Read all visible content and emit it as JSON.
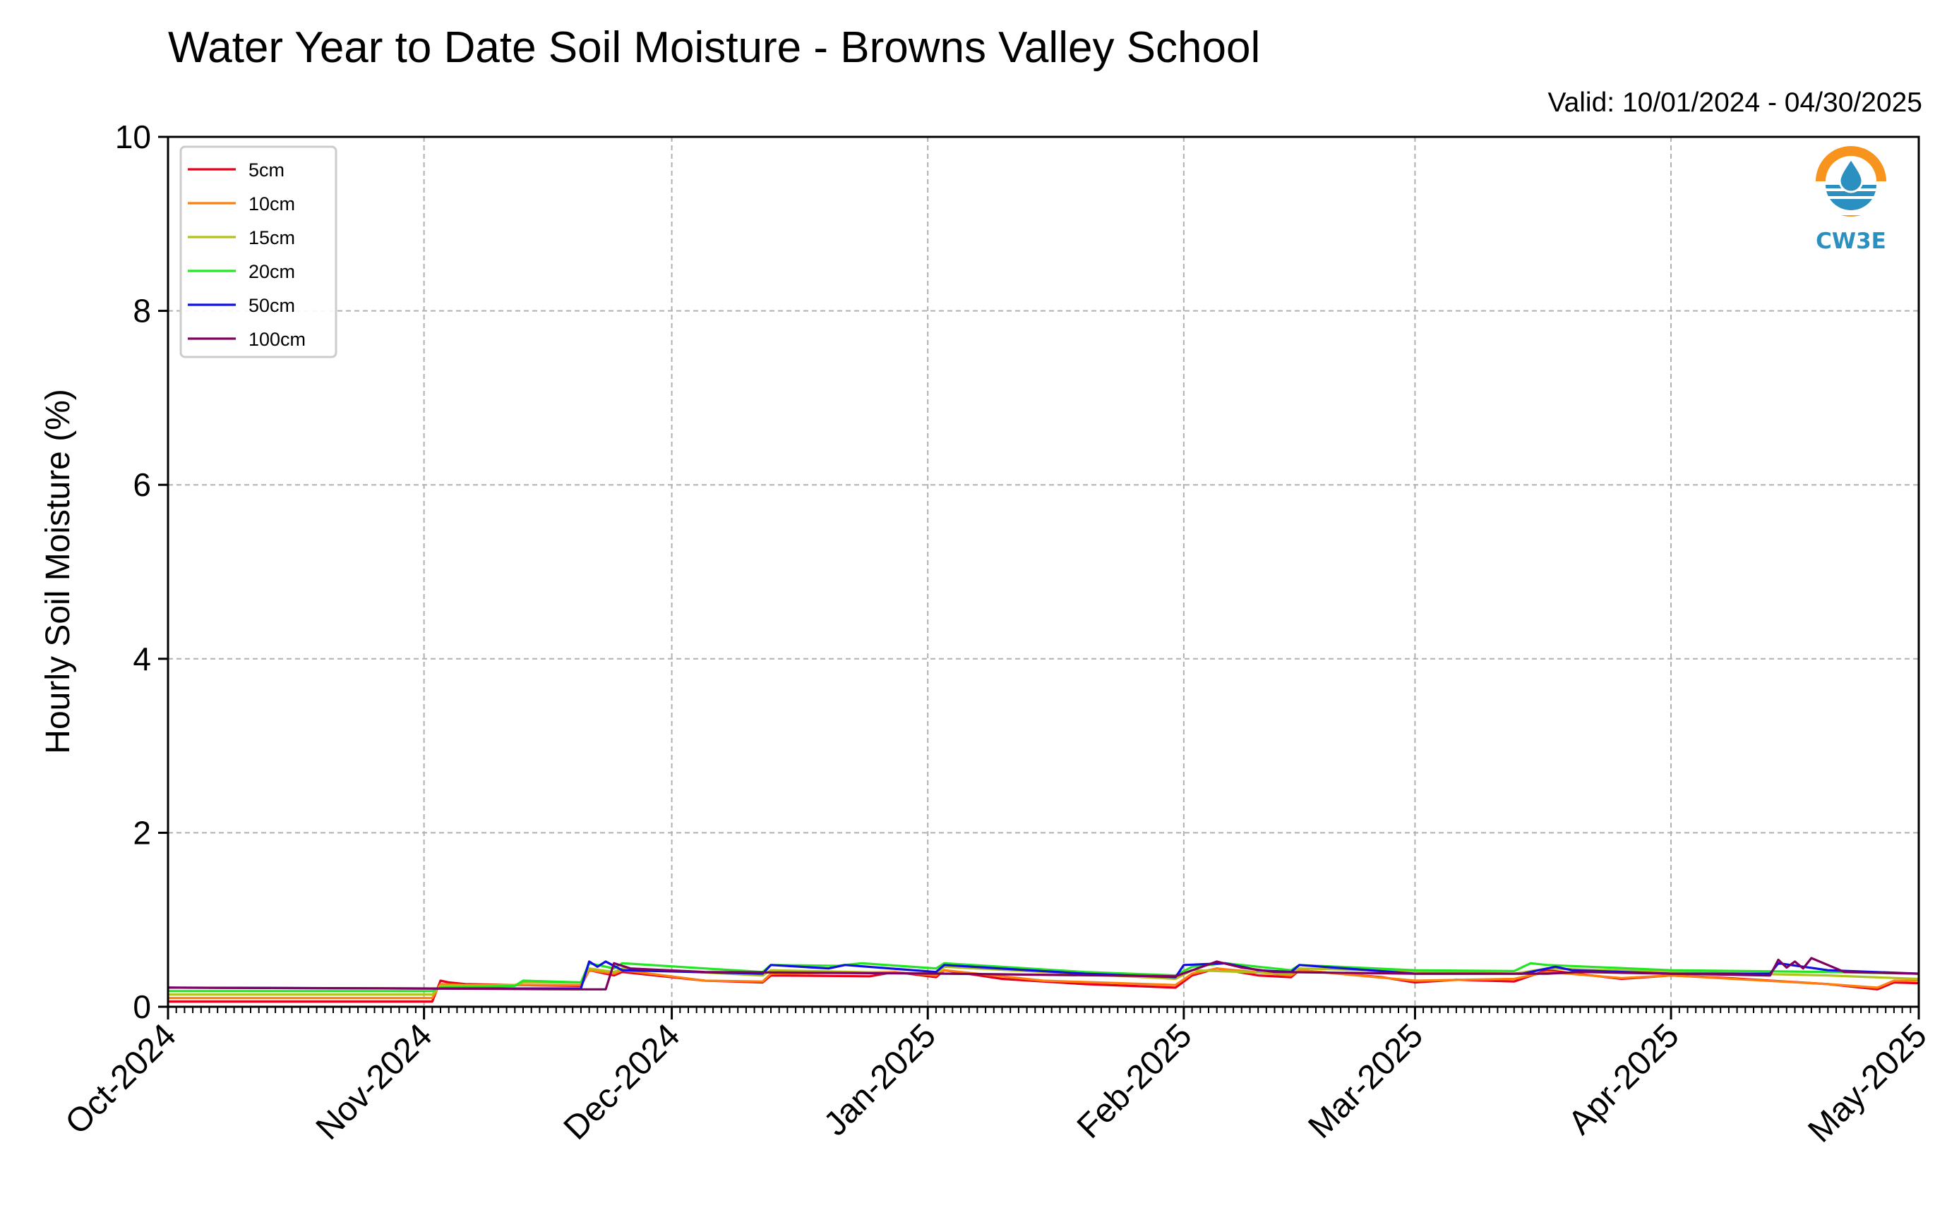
{
  "title": "Water Year to Date Soil Moisture - Browns Valley School",
  "valid_text": "Valid: 10/01/2024 - 04/30/2025",
  "logo": {
    "text": "CW3E",
    "icon": "cw3e-water-drop-logo",
    "colors": {
      "ring": "#f7941d",
      "water": "#2b8fbf"
    }
  },
  "chart_data": {
    "type": "line",
    "title": "Water Year to Date Soil Moisture - Browns Valley School",
    "xlabel": "",
    "ylabel": "Hourly Soil Moisture (%)",
    "ylim": [
      0,
      10
    ],
    "xlim": [
      "2024-10-01",
      "2025-05-01"
    ],
    "yticks": [
      0,
      2,
      4,
      6,
      8,
      10
    ],
    "xticks": [
      {
        "date": "2024-10-01",
        "label": "Oct-2024"
      },
      {
        "date": "2024-11-01",
        "label": "Nov-2024"
      },
      {
        "date": "2024-12-01",
        "label": "Dec-2024"
      },
      {
        "date": "2025-01-01",
        "label": "Jan-2025"
      },
      {
        "date": "2025-02-01",
        "label": "Feb-2025"
      },
      {
        "date": "2025-03-01",
        "label": "Mar-2025"
      },
      {
        "date": "2025-04-01",
        "label": "Apr-2025"
      },
      {
        "date": "2025-05-01",
        "label": "May-2025"
      }
    ],
    "grid": true,
    "legend_position": "top-left",
    "series": [
      {
        "name": "5cm",
        "color": "#e8001a",
        "points": [
          [
            "2024-10-01",
            0.06
          ],
          [
            "2024-11-02",
            0.06
          ],
          [
            "2024-11-03",
            0.3
          ],
          [
            "2024-11-04",
            0.28
          ],
          [
            "2024-11-06",
            0.26
          ],
          [
            "2024-11-12",
            0.25
          ],
          [
            "2024-11-20",
            0.24
          ],
          [
            "2024-11-21",
            0.42
          ],
          [
            "2024-11-24",
            0.36
          ],
          [
            "2024-11-25",
            0.4
          ],
          [
            "2024-12-05",
            0.3
          ],
          [
            "2024-12-12",
            0.28
          ],
          [
            "2024-12-13",
            0.36
          ],
          [
            "2024-12-25",
            0.35
          ],
          [
            "2024-12-28",
            0.4
          ],
          [
            "2025-01-02",
            0.34
          ],
          [
            "2025-01-03",
            0.42
          ],
          [
            "2025-01-10",
            0.32
          ],
          [
            "2025-01-20",
            0.26
          ],
          [
            "2025-01-31",
            0.22
          ],
          [
            "2025-02-02",
            0.36
          ],
          [
            "2025-02-05",
            0.44
          ],
          [
            "2025-02-10",
            0.36
          ],
          [
            "2025-02-14",
            0.34
          ],
          [
            "2025-02-15",
            0.42
          ],
          [
            "2025-02-25",
            0.34
          ],
          [
            "2025-03-01",
            0.28
          ],
          [
            "2025-03-06",
            0.31
          ],
          [
            "2025-03-13",
            0.29
          ],
          [
            "2025-03-17",
            0.42
          ],
          [
            "2025-03-26",
            0.32
          ],
          [
            "2025-04-01",
            0.36
          ],
          [
            "2025-04-08",
            0.33
          ],
          [
            "2025-04-20",
            0.26
          ],
          [
            "2025-04-26",
            0.2
          ],
          [
            "2025-04-28",
            0.28
          ],
          [
            "2025-05-01",
            0.27
          ]
        ]
      },
      {
        "name": "10cm",
        "color": "#ff7f0e",
        "points": [
          [
            "2024-10-01",
            0.1
          ],
          [
            "2024-11-02",
            0.1
          ],
          [
            "2024-11-03",
            0.26
          ],
          [
            "2024-11-06",
            0.25
          ],
          [
            "2024-11-20",
            0.25
          ],
          [
            "2024-11-21",
            0.42
          ],
          [
            "2024-11-24",
            0.38
          ],
          [
            "2024-11-25",
            0.42
          ],
          [
            "2024-12-05",
            0.3
          ],
          [
            "2024-12-12",
            0.29
          ],
          [
            "2024-12-13",
            0.38
          ],
          [
            "2024-12-28",
            0.4
          ],
          [
            "2025-01-02",
            0.36
          ],
          [
            "2025-01-03",
            0.42
          ],
          [
            "2025-01-15",
            0.3
          ],
          [
            "2025-01-31",
            0.25
          ],
          [
            "2025-02-02",
            0.38
          ],
          [
            "2025-02-05",
            0.44
          ],
          [
            "2025-02-14",
            0.36
          ],
          [
            "2025-02-15",
            0.42
          ],
          [
            "2025-03-01",
            0.3
          ],
          [
            "2025-03-13",
            0.32
          ],
          [
            "2025-03-17",
            0.4
          ],
          [
            "2025-03-26",
            0.33
          ],
          [
            "2025-04-01",
            0.36
          ],
          [
            "2025-04-20",
            0.26
          ],
          [
            "2025-04-26",
            0.22
          ],
          [
            "2025-04-28",
            0.3
          ],
          [
            "2025-05-01",
            0.3
          ]
        ]
      },
      {
        "name": "15cm",
        "color": "#b2c21b",
        "points": [
          [
            "2024-10-01",
            0.14
          ],
          [
            "2024-11-02",
            0.14
          ],
          [
            "2024-11-03",
            0.24
          ],
          [
            "2024-11-12",
            0.25
          ],
          [
            "2024-11-13",
            0.28
          ],
          [
            "2024-11-20",
            0.28
          ],
          [
            "2024-11-21",
            0.44
          ],
          [
            "2024-11-24",
            0.4
          ],
          [
            "2024-11-25",
            0.44
          ],
          [
            "2024-12-12",
            0.36
          ],
          [
            "2024-12-13",
            0.42
          ],
          [
            "2025-01-02",
            0.38
          ],
          [
            "2025-01-03",
            0.46
          ],
          [
            "2025-01-31",
            0.32
          ],
          [
            "2025-02-02",
            0.42
          ],
          [
            "2025-02-14",
            0.38
          ],
          [
            "2025-02-15",
            0.44
          ],
          [
            "2025-03-13",
            0.38
          ],
          [
            "2025-03-17",
            0.44
          ],
          [
            "2025-04-01",
            0.4
          ],
          [
            "2025-04-20",
            0.36
          ],
          [
            "2025-05-01",
            0.32
          ]
        ]
      },
      {
        "name": "20cm",
        "color": "#22e622",
        "points": [
          [
            "2024-10-01",
            0.18
          ],
          [
            "2024-11-02",
            0.18
          ],
          [
            "2024-11-03",
            0.22
          ],
          [
            "2024-11-12",
            0.24
          ],
          [
            "2024-11-13",
            0.3
          ],
          [
            "2024-11-20",
            0.28
          ],
          [
            "2024-11-21",
            0.5
          ],
          [
            "2024-11-24",
            0.44
          ],
          [
            "2024-11-25",
            0.5
          ],
          [
            "2024-12-05",
            0.44
          ],
          [
            "2024-12-12",
            0.4
          ],
          [
            "2024-12-13",
            0.48
          ],
          [
            "2024-12-21",
            0.47
          ],
          [
            "2024-12-24",
            0.5
          ],
          [
            "2025-01-02",
            0.44
          ],
          [
            "2025-01-03",
            0.5
          ],
          [
            "2025-01-20",
            0.4
          ],
          [
            "2025-01-31",
            0.36
          ],
          [
            "2025-02-02",
            0.46
          ],
          [
            "2025-02-06",
            0.5
          ],
          [
            "2025-02-14",
            0.42
          ],
          [
            "2025-02-15",
            0.48
          ],
          [
            "2025-03-01",
            0.42
          ],
          [
            "2025-03-13",
            0.41
          ],
          [
            "2025-03-15",
            0.5
          ],
          [
            "2025-03-17",
            0.48
          ],
          [
            "2025-04-01",
            0.42
          ],
          [
            "2025-04-20",
            0.4
          ],
          [
            "2025-05-01",
            0.38
          ]
        ]
      },
      {
        "name": "50cm",
        "color": "#1010e0",
        "points": [
          [
            "2024-10-01",
            0.22
          ],
          [
            "2024-11-03",
            0.21
          ],
          [
            "2024-11-20",
            0.21
          ],
          [
            "2024-11-21",
            0.52
          ],
          [
            "2024-11-22",
            0.46
          ],
          [
            "2024-11-23",
            0.52
          ],
          [
            "2024-11-25",
            0.42
          ],
          [
            "2024-12-12",
            0.38
          ],
          [
            "2024-12-13",
            0.48
          ],
          [
            "2024-12-20",
            0.44
          ],
          [
            "2024-12-22",
            0.48
          ],
          [
            "2025-01-02",
            0.4
          ],
          [
            "2025-01-03",
            0.48
          ],
          [
            "2025-01-20",
            0.38
          ],
          [
            "2025-01-31",
            0.34
          ],
          [
            "2025-02-01",
            0.48
          ],
          [
            "2025-02-06",
            0.5
          ],
          [
            "2025-02-10",
            0.42
          ],
          [
            "2025-02-14",
            0.4
          ],
          [
            "2025-02-15",
            0.48
          ],
          [
            "2025-03-01",
            0.38
          ],
          [
            "2025-03-14",
            0.38
          ],
          [
            "2025-03-18",
            0.46
          ],
          [
            "2025-03-20",
            0.42
          ],
          [
            "2025-04-01",
            0.38
          ],
          [
            "2025-04-13",
            0.38
          ],
          [
            "2025-04-14",
            0.5
          ],
          [
            "2025-04-20",
            0.42
          ],
          [
            "2025-05-01",
            0.38
          ]
        ]
      },
      {
        "name": "100cm",
        "color": "#800060",
        "points": [
          [
            "2024-10-01",
            0.22
          ],
          [
            "2024-11-01",
            0.21
          ],
          [
            "2024-11-20",
            0.2
          ],
          [
            "2024-11-23",
            0.2
          ],
          [
            "2024-11-24",
            0.5
          ],
          [
            "2024-11-26",
            0.44
          ],
          [
            "2024-12-05",
            0.4
          ],
          [
            "2025-01-03",
            0.38
          ],
          [
            "2025-01-31",
            0.35
          ],
          [
            "2025-02-05",
            0.52
          ],
          [
            "2025-02-08",
            0.45
          ],
          [
            "2025-02-12",
            0.4
          ],
          [
            "2025-03-01",
            0.38
          ],
          [
            "2025-03-17",
            0.38
          ],
          [
            "2025-03-21",
            0.4
          ],
          [
            "2025-04-01",
            0.38
          ],
          [
            "2025-04-13",
            0.36
          ],
          [
            "2025-04-14",
            0.54
          ],
          [
            "2025-04-15",
            0.45
          ],
          [
            "2025-04-16",
            0.52
          ],
          [
            "2025-04-17",
            0.44
          ],
          [
            "2025-04-18",
            0.56
          ],
          [
            "2025-04-22",
            0.4
          ],
          [
            "2025-05-01",
            0.38
          ]
        ]
      }
    ]
  }
}
